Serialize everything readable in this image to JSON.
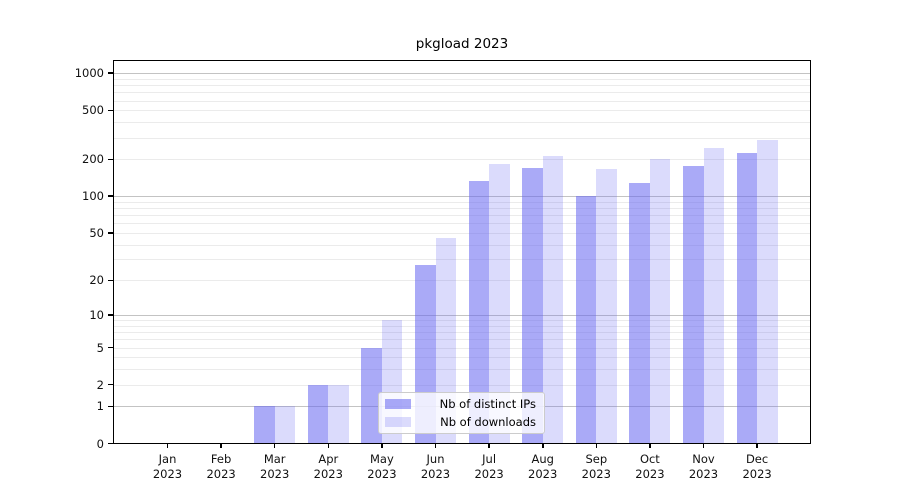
{
  "title": "pkgload 2023",
  "chart_data": {
    "type": "bar",
    "title": "pkgload 2023",
    "categories": [
      "Jan 2023",
      "Feb 2023",
      "Mar 2023",
      "Apr 2023",
      "May 2023",
      "Jun 2023",
      "Jul 2023",
      "Aug 2023",
      "Sep 2023",
      "Oct 2023",
      "Nov 2023",
      "Dec 2023"
    ],
    "months": [
      "Jan",
      "Feb",
      "Mar",
      "Apr",
      "May",
      "Jun",
      "Jul",
      "Aug",
      "Sep",
      "Oct",
      "Nov",
      "Dec"
    ],
    "year": "2023",
    "series": [
      {
        "name": "Nb of distinct IPs",
        "color": "rgba(100,100,240,0.55)",
        "values": [
          0,
          0,
          1,
          2,
          5,
          27,
          133,
          171,
          100,
          127,
          175,
          223
        ]
      },
      {
        "name": "Nb of downloads",
        "color": "rgba(100,100,240,0.23)",
        "values": [
          0,
          0,
          1,
          2,
          9,
          45,
          182,
          213,
          168,
          200,
          246,
          287
        ]
      }
    ],
    "xlabel": "",
    "ylabel": "",
    "yscale": "log1p",
    "ylim": [
      0,
      1290
    ],
    "yticks": [
      0,
      1,
      2,
      5,
      10,
      20,
      50,
      100,
      200,
      500,
      1000
    ],
    "grid": "on",
    "legend_position": "lower center"
  },
  "colors": {
    "grid_major": "#c3c3c3",
    "grid_minor": "#ebebeb",
    "axis": "#000000",
    "legend_border": "#cccccc",
    "legend_bg": "rgba(255,255,255,0.8)"
  }
}
